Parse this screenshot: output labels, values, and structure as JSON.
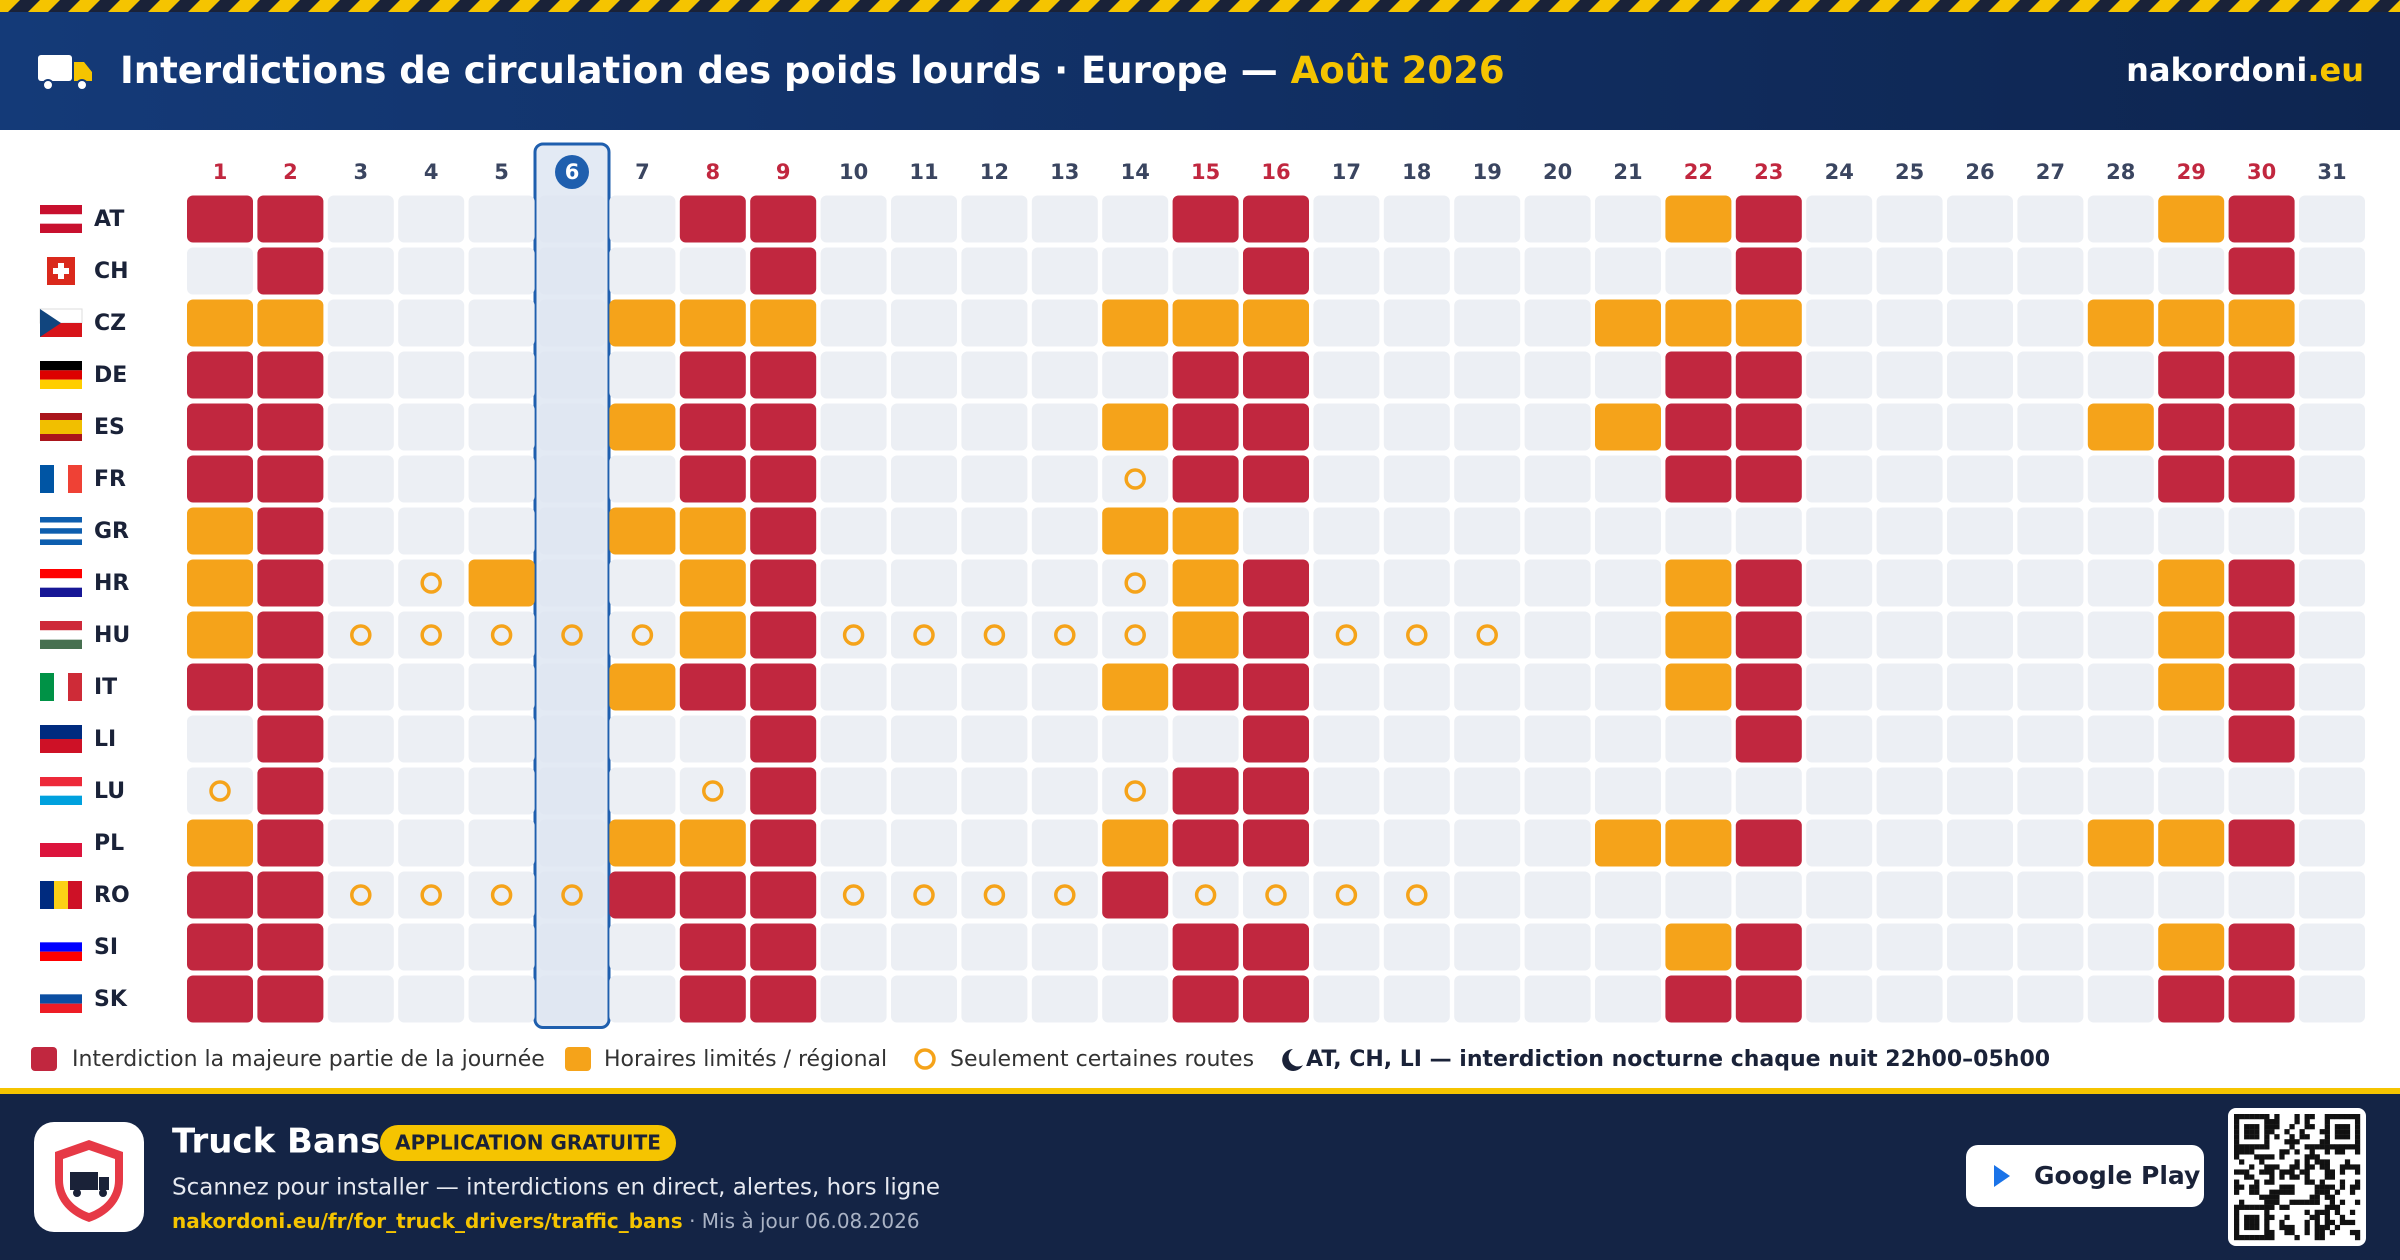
{
  "header": {
    "title": "Interdictions de circulation des poids lourds · Europe —",
    "month": "Août 2026",
    "brand": "nakordoni",
    "brand_tld": ".eu"
  },
  "calendar": {
    "days": [
      1,
      2,
      3,
      4,
      5,
      6,
      7,
      8,
      9,
      10,
      11,
      12,
      13,
      14,
      15,
      16,
      17,
      18,
      19,
      20,
      21,
      22,
      23,
      24,
      25,
      26,
      27,
      28,
      29,
      30,
      31
    ],
    "highlight_indices": [
      0,
      1,
      7,
      8,
      14,
      15,
      21,
      22,
      28,
      29
    ],
    "today_index": 5,
    "countries": [
      {
        "code": "AT",
        "bans": [
          0,
          0,
          null,
          null,
          null,
          null,
          null,
          0,
          0,
          null,
          null,
          null,
          null,
          null,
          0,
          0,
          null,
          null,
          null,
          null,
          null,
          1,
          0,
          null,
          null,
          null,
          null,
          null,
          1,
          0,
          null
        ]
      },
      {
        "code": "CH",
        "bans": [
          null,
          0,
          null,
          null,
          null,
          null,
          null,
          null,
          0,
          null,
          null,
          null,
          null,
          null,
          null,
          0,
          null,
          null,
          null,
          null,
          null,
          null,
          0,
          null,
          null,
          null,
          null,
          null,
          null,
          0,
          null
        ]
      },
      {
        "code": "CZ",
        "bans": [
          1,
          1,
          null,
          null,
          null,
          null,
          1,
          1,
          1,
          null,
          null,
          null,
          null,
          1,
          1,
          1,
          null,
          null,
          null,
          null,
          1,
          1,
          1,
          null,
          null,
          null,
          null,
          1,
          1,
          1,
          null
        ]
      },
      {
        "code": "DE",
        "bans": [
          0,
          0,
          null,
          null,
          null,
          null,
          null,
          0,
          0,
          null,
          null,
          null,
          null,
          null,
          0,
          0,
          null,
          null,
          null,
          null,
          null,
          0,
          0,
          null,
          null,
          null,
          null,
          null,
          0,
          0,
          null
        ]
      },
      {
        "code": "ES",
        "bans": [
          0,
          0,
          null,
          null,
          null,
          null,
          1,
          0,
          0,
          null,
          null,
          null,
          null,
          1,
          0,
          0,
          null,
          null,
          null,
          null,
          1,
          0,
          0,
          null,
          null,
          null,
          null,
          1,
          0,
          0,
          null
        ]
      },
      {
        "code": "FR",
        "bans": [
          0,
          0,
          null,
          null,
          null,
          null,
          null,
          0,
          0,
          null,
          null,
          null,
          null,
          2,
          0,
          0,
          null,
          null,
          null,
          null,
          null,
          0,
          0,
          null,
          null,
          null,
          null,
          null,
          0,
          0,
          null
        ]
      },
      {
        "code": "GR",
        "bans": [
          1,
          0,
          null,
          null,
          null,
          null,
          1,
          1,
          0,
          null,
          null,
          null,
          null,
          1,
          1,
          null,
          null,
          null,
          null,
          null,
          null,
          null,
          null,
          null,
          null,
          null,
          null,
          null,
          null,
          null,
          null
        ]
      },
      {
        "code": "HR",
        "bans": [
          1,
          0,
          null,
          2,
          1,
          null,
          null,
          1,
          0,
          null,
          null,
          null,
          null,
          2,
          1,
          0,
          null,
          null,
          null,
          null,
          null,
          1,
          0,
          null,
          null,
          null,
          null,
          null,
          1,
          0,
          null
        ]
      },
      {
        "code": "HU",
        "bans": [
          1,
          0,
          2,
          2,
          2,
          2,
          2,
          1,
          0,
          2,
          2,
          2,
          2,
          2,
          1,
          0,
          2,
          2,
          2,
          null,
          null,
          1,
          0,
          null,
          null,
          null,
          null,
          null,
          1,
          0,
          null
        ]
      },
      {
        "code": "IT",
        "bans": [
          0,
          0,
          null,
          null,
          null,
          null,
          1,
          0,
          0,
          null,
          null,
          null,
          null,
          1,
          0,
          0,
          null,
          null,
          null,
          null,
          null,
          1,
          0,
          null,
          null,
          null,
          null,
          null,
          1,
          0,
          null
        ]
      },
      {
        "code": "LI",
        "bans": [
          null,
          0,
          null,
          null,
          null,
          null,
          null,
          null,
          0,
          null,
          null,
          null,
          null,
          null,
          null,
          0,
          null,
          null,
          null,
          null,
          null,
          null,
          0,
          null,
          null,
          null,
          null,
          null,
          null,
          0,
          null
        ]
      },
      {
        "code": "LU",
        "bans": [
          2,
          0,
          null,
          null,
          null,
          null,
          null,
          2,
          0,
          null,
          null,
          null,
          null,
          2,
          0,
          0,
          null,
          null,
          null,
          null,
          null,
          null,
          null,
          null,
          null,
          null,
          null,
          null,
          null,
          null,
          null
        ]
      },
      {
        "code": "PL",
        "bans": [
          1,
          0,
          null,
          null,
          null,
          null,
          1,
          1,
          0,
          null,
          null,
          null,
          null,
          1,
          0,
          0,
          null,
          null,
          null,
          null,
          1,
          1,
          0,
          null,
          null,
          null,
          null,
          1,
          1,
          0,
          null
        ]
      },
      {
        "code": "RO",
        "bans": [
          0,
          0,
          2,
          2,
          2,
          2,
          0,
          0,
          0,
          2,
          2,
          2,
          2,
          0,
          2,
          2,
          2,
          2,
          null,
          null,
          null,
          null,
          null,
          null,
          null,
          null,
          null,
          null,
          null,
          null,
          null
        ]
      },
      {
        "code": "SI",
        "bans": [
          0,
          0,
          null,
          null,
          null,
          null,
          null,
          0,
          0,
          null,
          null,
          null,
          null,
          null,
          0,
          0,
          null,
          null,
          null,
          null,
          null,
          1,
          0,
          null,
          null,
          null,
          null,
          null,
          1,
          0,
          null
        ]
      },
      {
        "code": "SK",
        "bans": [
          0,
          0,
          null,
          null,
          null,
          null,
          null,
          0,
          0,
          null,
          null,
          null,
          null,
          null,
          0,
          0,
          null,
          null,
          null,
          null,
          null,
          0,
          0,
          null,
          null,
          null,
          null,
          null,
          0,
          0,
          null
        ]
      }
    ]
  },
  "legend": {
    "items": [
      "Interdiction la majeure partie de la journée",
      "Horaires limités / régional",
      "Seulement certaines routes"
    ],
    "colors": [
      "#c1273f",
      "#f5a31a",
      "#f5a31a"
    ],
    "note": "AT, CH, LI — interdiction nocturne chaque nuit 22h00–05h00"
  },
  "footer": {
    "app_name": "Truck Bans",
    "badge": "APPLICATION GRATUITE",
    "tagline": "Scannez pour installer — interdictions en direct, alertes, hors ligne",
    "url": "nakordoni.eu/fr/for_truck_drivers/traffic_bans",
    "updated": "· Mis à jour 06.08.2026",
    "store": "Google Play"
  }
}
